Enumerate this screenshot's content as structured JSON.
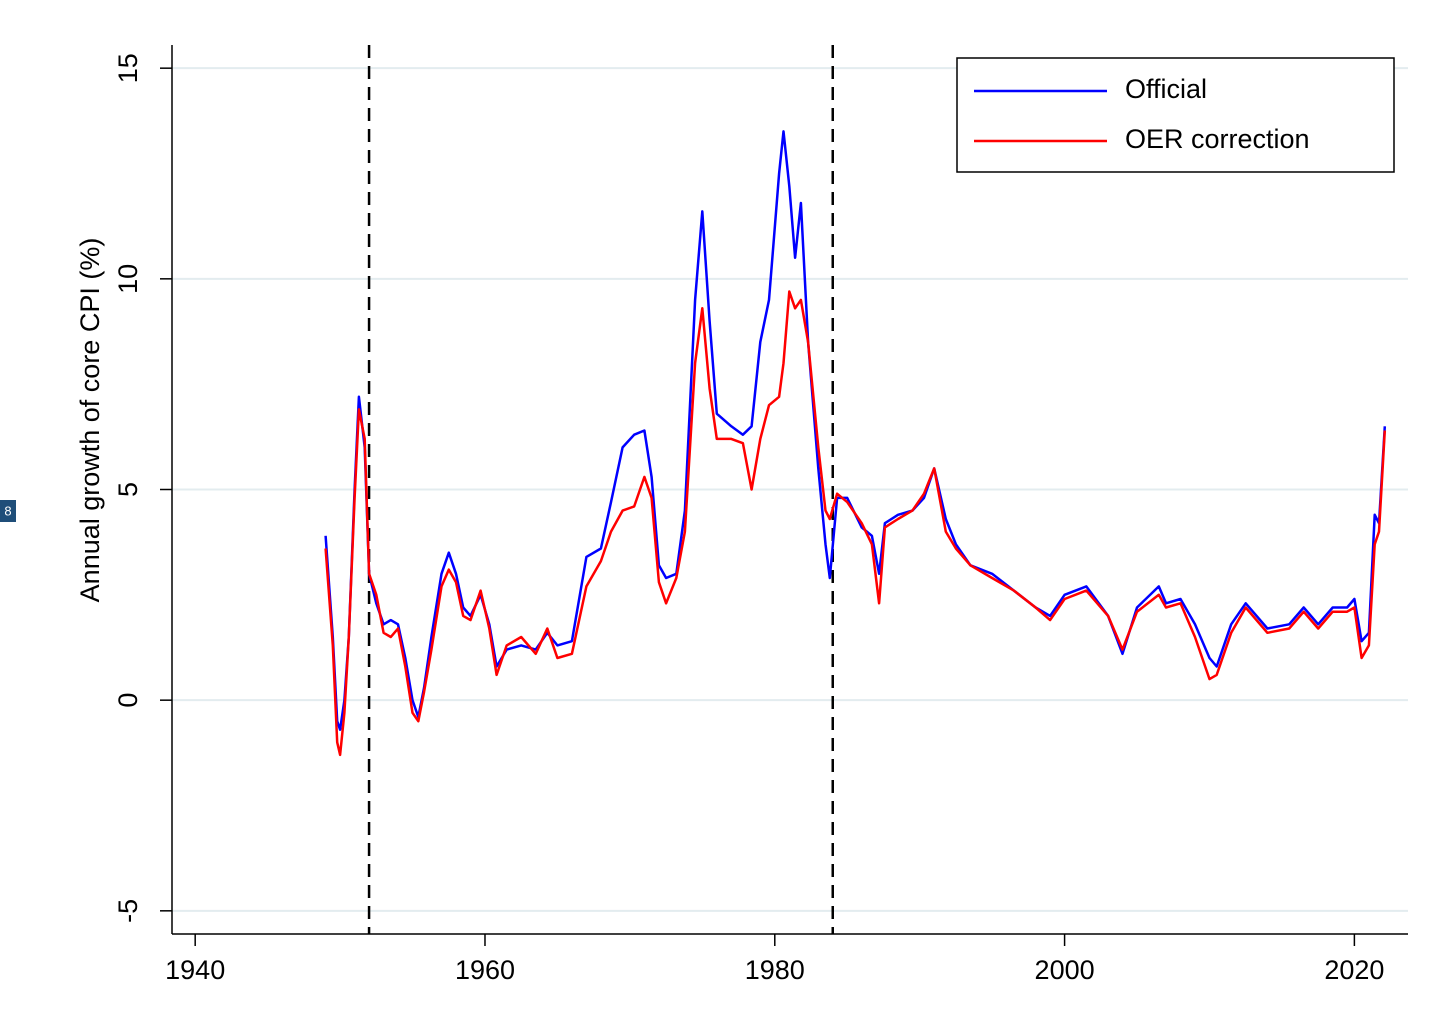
{
  "page_marker": "8",
  "chart_data": {
    "type": "line",
    "y_label": "Annual growth of core CPI (%)",
    "x": [
      1949.0,
      1949.5,
      1949.8,
      1950.0,
      1950.3,
      1950.6,
      1951.0,
      1951.3,
      1951.7,
      1952.0,
      1952.5,
      1953.0,
      1953.5,
      1954.0,
      1954.5,
      1955.0,
      1955.4,
      1955.8,
      1956.3,
      1957.0,
      1957.5,
      1958.0,
      1958.5,
      1959.0,
      1959.7,
      1960.3,
      1960.8,
      1961.5,
      1962.5,
      1963.5,
      1964.3,
      1965.0,
      1966.0,
      1967.0,
      1968.0,
      1968.7,
      1969.5,
      1970.3,
      1971.0,
      1971.5,
      1972.0,
      1972.5,
      1973.2,
      1973.8,
      1974.5,
      1975.0,
      1975.5,
      1976.0,
      1977.0,
      1977.8,
      1978.4,
      1979.0,
      1979.6,
      1980.3,
      1980.6,
      1981.0,
      1981.4,
      1981.8,
      1982.3,
      1983.0,
      1983.5,
      1983.8,
      1984.3,
      1985.0,
      1986.0,
      1986.7,
      1987.2,
      1987.6,
      1988.5,
      1989.5,
      1990.3,
      1991.0,
      1991.8,
      1992.5,
      1993.5,
      1995.0,
      1996.5,
      1998.0,
      1999.0,
      2000.0,
      2001.5,
      2003.0,
      2004.0,
      2005.0,
      2006.5,
      2007.0,
      2008.0,
      2009.0,
      2010.0,
      2010.5,
      2011.5,
      2012.5,
      2014.0,
      2015.5,
      2016.5,
      2017.5,
      2018.5,
      2019.5,
      2020.0,
      2020.5,
      2021.0,
      2021.4,
      2021.7,
      2022.1
    ],
    "series": [
      {
        "name": "Official",
        "color": "#0000ff",
        "values": [
          3.9,
          1.5,
          -0.5,
          -0.7,
          0.0,
          1.5,
          5.0,
          7.2,
          6.0,
          3.0,
          2.3,
          1.8,
          1.9,
          1.8,
          1.0,
          0.0,
          -0.4,
          0.3,
          1.5,
          3.0,
          3.5,
          3.0,
          2.2,
          2.0,
          2.5,
          1.8,
          0.8,
          1.2,
          1.3,
          1.2,
          1.6,
          1.3,
          1.4,
          3.4,
          3.6,
          4.7,
          6.0,
          6.3,
          6.4,
          5.3,
          3.2,
          2.9,
          3.0,
          4.5,
          9.5,
          11.6,
          9.0,
          6.8,
          6.5,
          6.3,
          6.5,
          8.5,
          9.5,
          12.5,
          13.5,
          12.2,
          10.5,
          11.8,
          8.5,
          5.5,
          3.7,
          2.9,
          4.8,
          4.8,
          4.1,
          3.9,
          3.0,
          4.2,
          4.4,
          4.5,
          4.8,
          5.5,
          4.3,
          3.7,
          3.2,
          3.0,
          2.6,
          2.2,
          2.0,
          2.5,
          2.7,
          2.0,
          1.1,
          2.2,
          2.7,
          2.3,
          2.4,
          1.8,
          1.0,
          0.8,
          1.8,
          2.3,
          1.7,
          1.8,
          2.2,
          1.8,
          2.2,
          2.2,
          2.4,
          1.4,
          1.6,
          4.4,
          4.2,
          6.5
        ]
      },
      {
        "name": "OER correction",
        "color": "#ff0000",
        "values": [
          3.6,
          1.3,
          -1.0,
          -1.3,
          -0.3,
          1.5,
          4.8,
          6.9,
          6.2,
          3.0,
          2.5,
          1.6,
          1.5,
          1.7,
          0.8,
          -0.3,
          -0.5,
          0.2,
          1.2,
          2.7,
          3.1,
          2.8,
          2.0,
          1.9,
          2.6,
          1.7,
          0.6,
          1.3,
          1.5,
          1.1,
          1.7,
          1.0,
          1.1,
          2.7,
          3.3,
          4.0,
          4.5,
          4.6,
          5.3,
          4.8,
          2.8,
          2.3,
          2.9,
          4.0,
          8.0,
          9.3,
          7.4,
          6.2,
          6.2,
          6.1,
          5.0,
          6.2,
          7.0,
          7.2,
          8.0,
          9.7,
          9.3,
          9.5,
          8.5,
          6.0,
          4.5,
          4.3,
          4.9,
          4.7,
          4.2,
          3.7,
          2.3,
          4.1,
          4.3,
          4.5,
          4.9,
          5.5,
          4.0,
          3.6,
          3.2,
          2.9,
          2.6,
          2.2,
          1.9,
          2.4,
          2.6,
          2.0,
          1.2,
          2.1,
          2.5,
          2.2,
          2.3,
          1.5,
          0.5,
          0.6,
          1.6,
          2.2,
          1.6,
          1.7,
          2.1,
          1.7,
          2.1,
          2.1,
          2.2,
          1.0,
          1.3,
          3.7,
          4.0,
          6.4
        ]
      }
    ],
    "vlines": [
      1952,
      1984
    ],
    "xlim": [
      1938.4,
      2023.7
    ],
    "ylim": [
      -5.55,
      15.55
    ],
    "xticks": [
      1940,
      1960,
      1980,
      2000,
      2020
    ],
    "yticks": [
      -5,
      0,
      5,
      10,
      15
    ],
    "grid": true,
    "legend": "top-right"
  }
}
